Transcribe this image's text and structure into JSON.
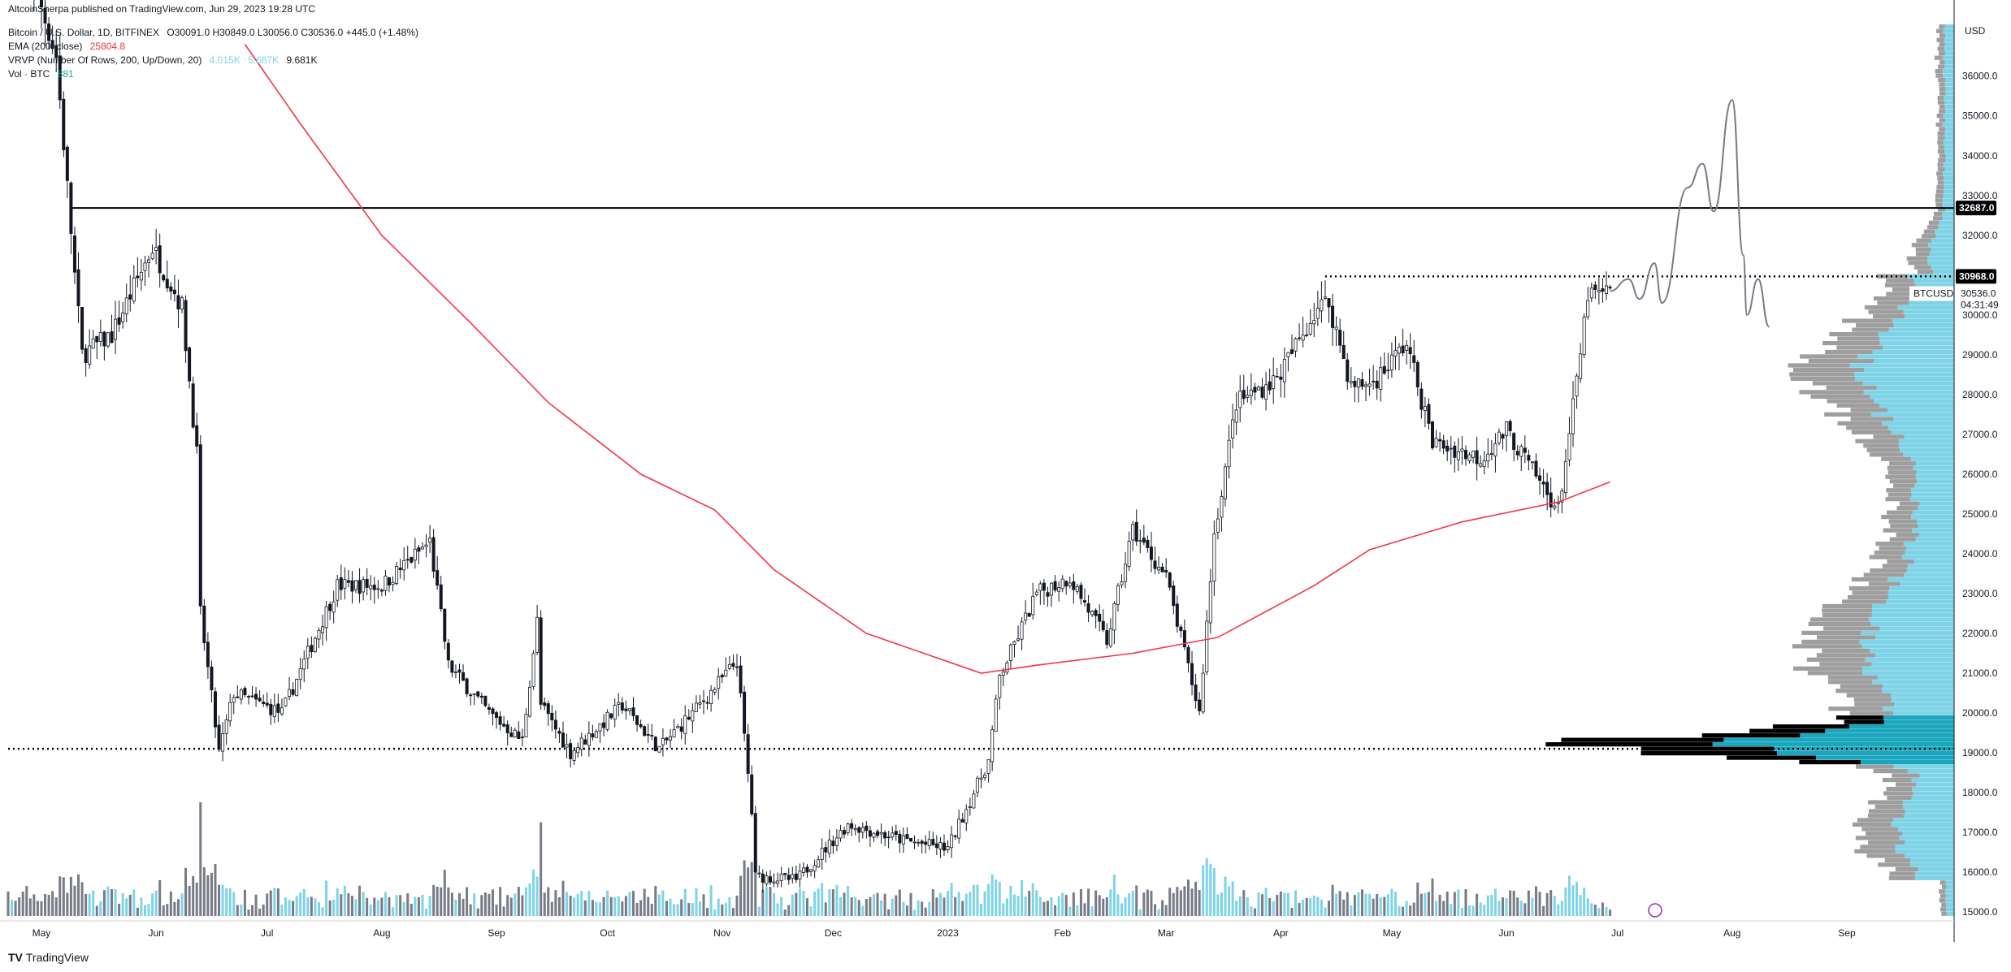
{
  "header": {
    "published": "AltcoinSherpa published on TradingView.com, Jun 29, 2023 19:28 UTC",
    "symbol_line": "Bitcoin / U.S. Dollar, 1D, BITFINEX",
    "ohlc": "O30091.0  H30849.0  L30056.0  C30536.0  +445.0 (+1.48%)",
    "ema_label": "EMA (200, close)",
    "ema_value": "25804.8",
    "vrvp_label": "VRVP (Number Of Rows, 200, Up/Down, 20)",
    "vrvp_v1": "4.015K",
    "vrvp_v2": "5.667K",
    "vrvp_v3": "9.681K",
    "vol_label": "Vol · BTC",
    "vol_value": "881"
  },
  "colors": {
    "bull": "#ffffff",
    "bear": "#131722",
    "ema": "#f23645",
    "vol_up": "#7fd3e6",
    "vol_down": "#787b86",
    "vp_up": "#7fd3e6",
    "vp_down": "#9e9e9e",
    "poc": "#000000"
  },
  "price_axis": {
    "currency": "USD",
    "ticks": [
      "36000.0",
      "35000.0",
      "34000.0",
      "33000.0",
      "32000.0",
      "30000.0",
      "29000.0",
      "28000.0",
      "27000.0",
      "26000.0",
      "25000.0",
      "24000.0",
      "23000.0",
      "22000.0",
      "21000.0",
      "20000.0",
      "19000.0",
      "18000.0",
      "17000.0",
      "16000.0",
      "15000.0"
    ],
    "resistance_tag": "32687.0",
    "level_tag": "30968.0",
    "symbol_tag": "BTCUSD",
    "last_price": "30536.0",
    "countdown": "04:31:49"
  },
  "time_axis": {
    "labels": [
      "May",
      "Jun",
      "Jul",
      "Aug",
      "Sep",
      "Oct",
      "Nov",
      "Dec",
      "2023",
      "Feb",
      "Mar",
      "Apr",
      "May",
      "Jun",
      "Jul",
      "Aug",
      "Sep"
    ]
  },
  "chart_data": {
    "type": "candlestick",
    "title": "Bitcoin / U.S. Dollar, 1D, BITFINEX",
    "ylabel": "USD",
    "ylim": [
      14900,
      37300
    ],
    "x_range": [
      "2022-04-22",
      "2023-09-30"
    ],
    "horizontal_levels": [
      {
        "name": "resistance",
        "value": 32687.0,
        "style": "solid",
        "from": "2022-05-09"
      },
      {
        "name": "range-high",
        "value": 30968.0,
        "style": "dotted",
        "from": "2023-04-13"
      },
      {
        "name": "range-low",
        "value": 19100,
        "style": "dotted",
        "from": "2022-04-22"
      }
    ],
    "ema200_path": [
      {
        "date": "2022-06-25",
        "value": 36800
      },
      {
        "date": "2022-07-10",
        "value": 34800
      },
      {
        "date": "2022-08-01",
        "value": 32000
      },
      {
        "date": "2022-08-25",
        "value": 29800
      },
      {
        "date": "2022-09-15",
        "value": 27800
      },
      {
        "date": "2022-10-10",
        "value": 26000
      },
      {
        "date": "2022-10-30",
        "value": 25100
      },
      {
        "date": "2022-11-15",
        "value": 23600
      },
      {
        "date": "2022-12-10",
        "value": 22000
      },
      {
        "date": "2023-01-10",
        "value": 21000
      },
      {
        "date": "2023-01-25",
        "value": 21200
      },
      {
        "date": "2023-02-20",
        "value": 21500
      },
      {
        "date": "2023-03-15",
        "value": 21900
      },
      {
        "date": "2023-04-10",
        "value": 23200
      },
      {
        "date": "2023-04-25",
        "value": 24100
      },
      {
        "date": "2023-05-20",
        "value": 24800
      },
      {
        "date": "2023-06-15",
        "value": 25300
      },
      {
        "date": "2023-06-29",
        "value": 25804.8
      }
    ],
    "price_path": [
      {
        "date": "2022-04-22",
        "value": 40500
      },
      {
        "date": "2022-05-05",
        "value": 36500
      },
      {
        "date": "2022-05-10",
        "value": 31000
      },
      {
        "date": "2022-05-12",
        "value": 29000
      },
      {
        "date": "2022-05-20",
        "value": 29500
      },
      {
        "date": "2022-05-31",
        "value": 31700
      },
      {
        "date": "2022-06-08",
        "value": 30200
      },
      {
        "date": "2022-06-12",
        "value": 26500
      },
      {
        "date": "2022-06-13",
        "value": 22500
      },
      {
        "date": "2022-06-18",
        "value": 19000
      },
      {
        "date": "2022-06-22",
        "value": 20500
      },
      {
        "date": "2022-07-05",
        "value": 20000
      },
      {
        "date": "2022-07-20",
        "value": 23200
      },
      {
        "date": "2022-08-01",
        "value": 23200
      },
      {
        "date": "2022-08-14",
        "value": 24300
      },
      {
        "date": "2022-08-19",
        "value": 21200
      },
      {
        "date": "2022-08-30",
        "value": 20000
      },
      {
        "date": "2022-09-08",
        "value": 19300
      },
      {
        "date": "2022-09-12",
        "value": 22300
      },
      {
        "date": "2022-09-13",
        "value": 20200
      },
      {
        "date": "2022-09-21",
        "value": 19000
      },
      {
        "date": "2022-10-05",
        "value": 20200
      },
      {
        "date": "2022-10-15",
        "value": 19100
      },
      {
        "date": "2022-10-25",
        "value": 20100
      },
      {
        "date": "2022-11-05",
        "value": 21300
      },
      {
        "date": "2022-11-09",
        "value": 17500
      },
      {
        "date": "2022-11-10",
        "value": 15900
      },
      {
        "date": "2022-11-21",
        "value": 15800
      },
      {
        "date": "2022-12-05",
        "value": 17200
      },
      {
        "date": "2022-12-20",
        "value": 16800
      },
      {
        "date": "2023-01-01",
        "value": 16600
      },
      {
        "date": "2023-01-12",
        "value": 18800
      },
      {
        "date": "2023-01-15",
        "value": 20900
      },
      {
        "date": "2023-01-25",
        "value": 23000
      },
      {
        "date": "2023-02-03",
        "value": 23400
      },
      {
        "date": "2023-02-13",
        "value": 21800
      },
      {
        "date": "2023-02-20",
        "value": 24600
      },
      {
        "date": "2023-03-01",
        "value": 23400
      },
      {
        "date": "2023-03-10",
        "value": 20000
      },
      {
        "date": "2023-03-14",
        "value": 24500
      },
      {
        "date": "2023-03-20",
        "value": 27800
      },
      {
        "date": "2023-03-31",
        "value": 28400
      },
      {
        "date": "2023-04-11",
        "value": 30200
      },
      {
        "date": "2023-04-14",
        "value": 30300
      },
      {
        "date": "2023-04-20",
        "value": 28200
      },
      {
        "date": "2023-04-26",
        "value": 28300
      },
      {
        "date": "2023-05-05",
        "value": 29300
      },
      {
        "date": "2023-05-12",
        "value": 26800
      },
      {
        "date": "2023-05-25",
        "value": 26400
      },
      {
        "date": "2023-06-01",
        "value": 27100
      },
      {
        "date": "2023-06-10",
        "value": 25800
      },
      {
        "date": "2023-06-15",
        "value": 25100
      },
      {
        "date": "2023-06-20",
        "value": 28300
      },
      {
        "date": "2023-06-23",
        "value": 30500
      },
      {
        "date": "2023-06-29",
        "value": 30536
      }
    ],
    "projection_path": [
      {
        "date": "2023-06-29",
        "value": 30600
      },
      {
        "date": "2023-07-04",
        "value": 30900
      },
      {
        "date": "2023-07-07",
        "value": 30400
      },
      {
        "date": "2023-07-11",
        "value": 31300
      },
      {
        "date": "2023-07-13",
        "value": 30300
      },
      {
        "date": "2023-07-20",
        "value": 33200
      },
      {
        "date": "2023-07-24",
        "value": 33800
      },
      {
        "date": "2023-07-27",
        "value": 32600
      },
      {
        "date": "2023-08-01",
        "value": 35400
      },
      {
        "date": "2023-08-04",
        "value": 31500
      },
      {
        "date": "2023-08-05",
        "value": 30000
      },
      {
        "date": "2023-08-08",
        "value": 30900
      },
      {
        "date": "2023-08-11",
        "value": 29700
      }
    ],
    "volume_profile_note": "Point of control near 19100 with heavy volume between 18800 and 19900"
  }
}
